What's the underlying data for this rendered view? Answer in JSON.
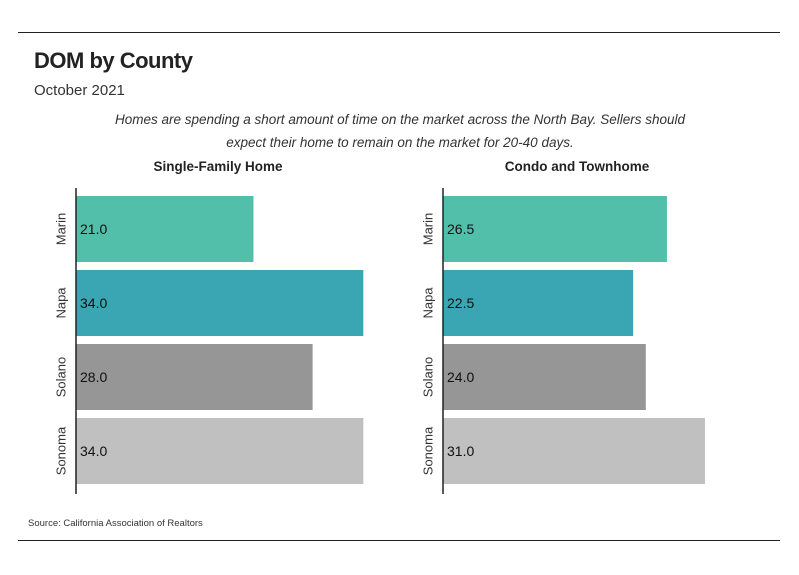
{
  "title": "DOM by County",
  "subtitle": "October 2021",
  "description": "Homes are spending a short amount of time on the market across the North Bay. Sellers should expect their home to remain on the market for 20-40 days.",
  "source": {
    "label": "Source:",
    "text": "California Association of Realtors"
  },
  "colors": {
    "Marin": "#52bfaa",
    "Napa": "#3aa6b4",
    "Solano": "#969696",
    "Sonoma": "#c0c0c0"
  },
  "chart_data": [
    {
      "type": "bar",
      "orientation": "horizontal",
      "title": "Single-Family Home",
      "categories": [
        "Marin",
        "Napa",
        "Solano",
        "Sonoma"
      ],
      "values": [
        21.0,
        34.0,
        28.0,
        34.0
      ],
      "data_labels": [
        "21.0",
        "34.0",
        "28.0",
        "34.0"
      ],
      "xlim": [
        0,
        35.5
      ],
      "grid": false
    },
    {
      "type": "bar",
      "orientation": "horizontal",
      "title": "Condo and Townhome",
      "categories": [
        "Marin",
        "Napa",
        "Solano",
        "Sonoma"
      ],
      "values": [
        26.5,
        22.5,
        24.0,
        31.0
      ],
      "data_labels": [
        "26.5",
        "22.5",
        "24.0",
        "31.0"
      ],
      "xlim": [
        0,
        35.5
      ],
      "grid": false
    }
  ]
}
